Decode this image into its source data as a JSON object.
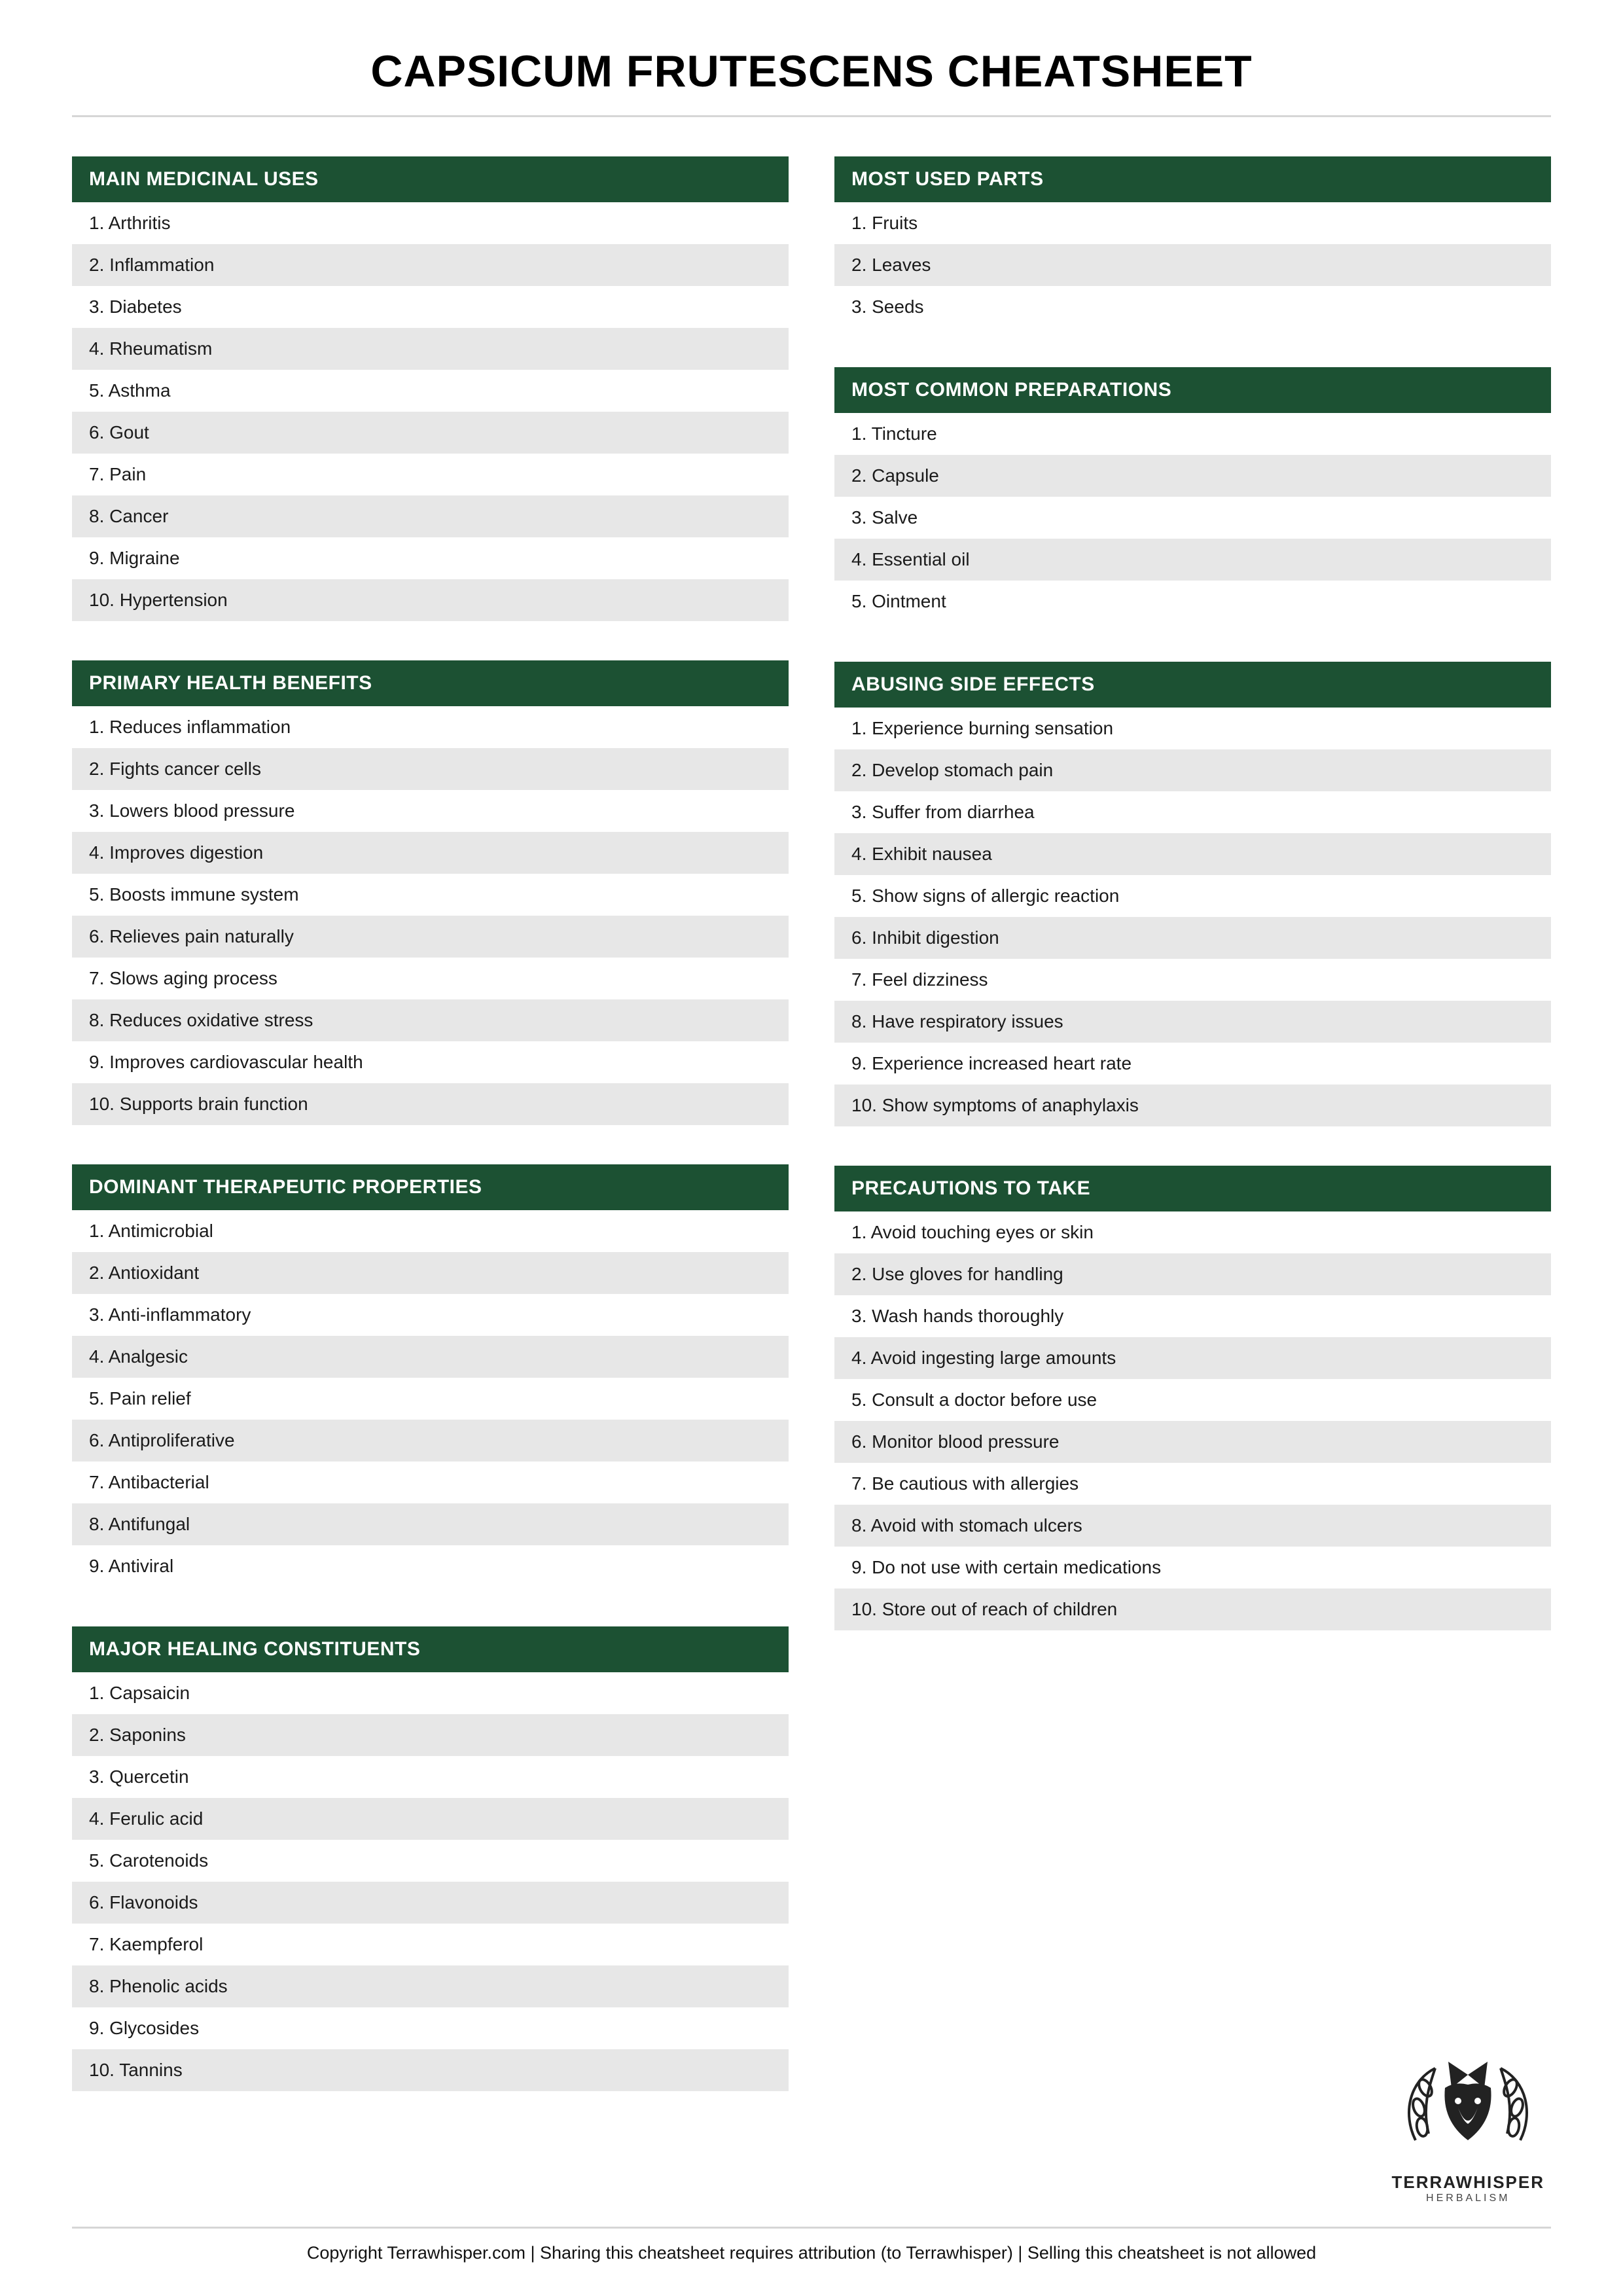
{
  "title": "CAPSICUM FRUTESCENS CHEATSHEET",
  "colors": {
    "header_bg": "#1c5133",
    "header_fg": "#ffffff",
    "row_alt_bg": "#e7e7e7",
    "divider": "#d6d6d6"
  },
  "left_sections": [
    {
      "title": "MAIN MEDICINAL USES",
      "items": [
        "Arthritis",
        "Inflammation",
        "Diabetes",
        "Rheumatism",
        "Asthma",
        "Gout",
        "Pain",
        "Cancer",
        "Migraine",
        "Hypertension"
      ]
    },
    {
      "title": "PRIMARY HEALTH BENEFITS",
      "items": [
        "Reduces inflammation",
        "Fights cancer cells",
        "Lowers blood pressure",
        "Improves digestion",
        "Boosts immune system",
        "Relieves pain naturally",
        "Slows aging process",
        "Reduces oxidative stress",
        "Improves cardiovascular health",
        "Supports brain function"
      ]
    },
    {
      "title": "DOMINANT THERAPEUTIC PROPERTIES",
      "items": [
        "Antimicrobial",
        "Antioxidant",
        "Anti-inflammatory",
        "Analgesic",
        "Pain relief",
        "Antiproliferative",
        "Antibacterial",
        "Antifungal",
        "Antiviral"
      ]
    },
    {
      "title": "MAJOR HEALING CONSTITUENTS",
      "items": [
        "Capsaicin",
        "Saponins",
        "Quercetin",
        "Ferulic acid",
        "Carotenoids",
        "Flavonoids",
        "Kaempferol",
        "Phenolic acids",
        "Glycosides",
        "Tannins"
      ]
    }
  ],
  "right_sections": [
    {
      "title": "MOST USED PARTS",
      "items": [
        "Fruits",
        "Leaves",
        "Seeds"
      ]
    },
    {
      "title": "MOST COMMON PREPARATIONS",
      "items": [
        "Tincture",
        "Capsule",
        "Salve",
        "Essential oil",
        "Ointment"
      ]
    },
    {
      "title": "ABUSING SIDE EFFECTS",
      "items": [
        "Experience burning sensation",
        "Develop stomach pain",
        "Suffer from diarrhea",
        "Exhibit nausea",
        "Show signs of allergic reaction",
        "Inhibit digestion",
        "Feel dizziness",
        "Have respiratory issues",
        "Experience increased heart rate",
        "Show symptoms of anaphylaxis"
      ]
    },
    {
      "title": "PRECAUTIONS TO TAKE",
      "items": [
        "Avoid touching eyes or skin",
        "Use gloves for handling",
        "Wash hands thoroughly",
        "Avoid ingesting large amounts",
        "Consult a doctor before use",
        "Monitor blood pressure",
        "Be cautious with allergies",
        "Avoid with stomach ulcers",
        "Do not use with certain medications",
        "Store out of reach of children"
      ]
    }
  ],
  "logo": {
    "brand": "TERRAWHISPER",
    "tagline": "HERBALISM"
  },
  "footer": "Copyright Terrawhisper.com | Sharing this cheatsheet requires attribution (to Terrawhisper) | Selling this cheatsheet is not allowed"
}
